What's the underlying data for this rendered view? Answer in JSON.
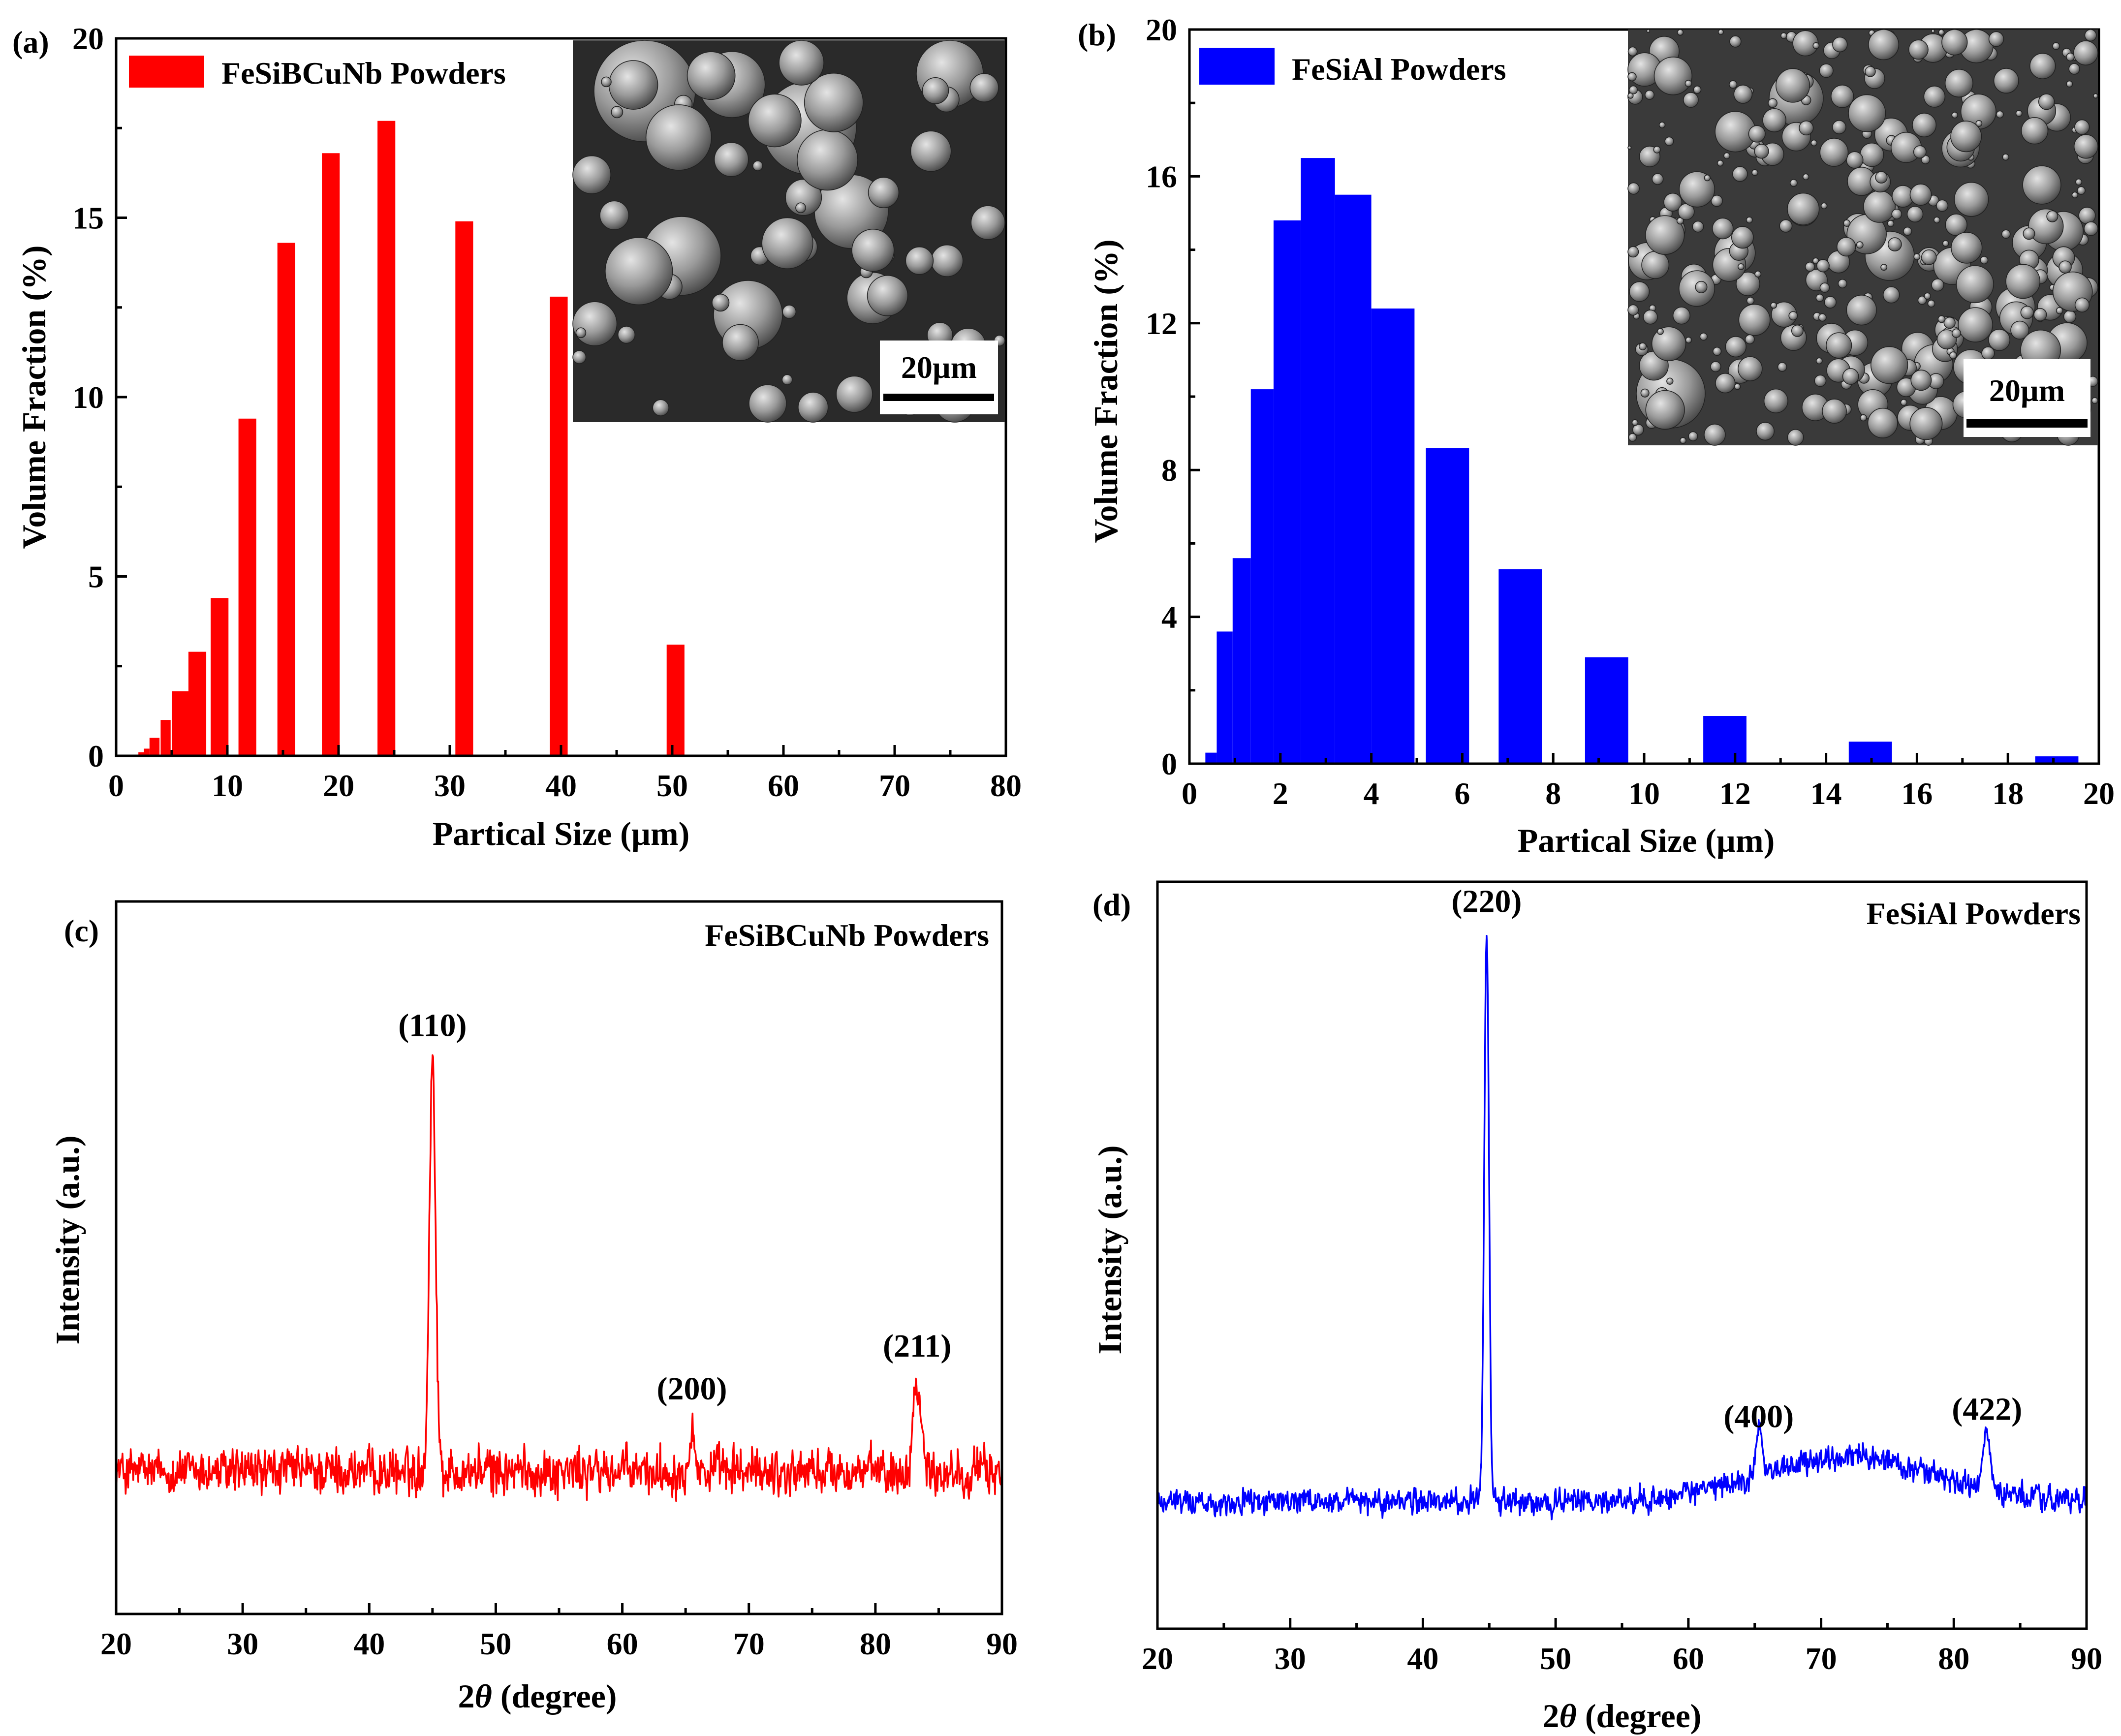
{
  "chart_data": [
    {
      "type": "bar",
      "panel_label": "(a)",
      "xlabel": "Partical Size (µm)",
      "ylabel": "Volume Fraction (%)",
      "xlim": [
        0,
        80
      ],
      "ylim": [
        0,
        20
      ],
      "xticks": [
        "0",
        "10",
        "20",
        "30",
        "40",
        "50",
        "60",
        "70",
        "80"
      ],
      "yticks": [
        "0",
        "5",
        "10",
        "15",
        "20"
      ],
      "legend": "FeSiBCuNb Powders",
      "legend_position": "top-left",
      "series_color": "#ff0000",
      "inset_scale_bar": "20µm",
      "bars": [
        {
          "x": 2.0,
          "width": 0.5,
          "value": 0.1
        },
        {
          "x": 2.5,
          "width": 0.5,
          "value": 0.2
        },
        {
          "x": 3.0,
          "width": 0.9,
          "value": 0.5
        },
        {
          "x": 4.0,
          "width": 0.9,
          "value": 1.0
        },
        {
          "x": 5.0,
          "width": 1.6,
          "value": 1.8
        },
        {
          "x": 6.5,
          "width": 1.6,
          "value": 2.9
        },
        {
          "x": 8.5,
          "width": 1.6,
          "value": 4.4
        },
        {
          "x": 11.0,
          "width": 1.6,
          "value": 9.4
        },
        {
          "x": 14.5,
          "width": 1.6,
          "value": 14.3
        },
        {
          "x": 18.5,
          "width": 1.6,
          "value": 16.8
        },
        {
          "x": 23.5,
          "width": 1.6,
          "value": 17.7
        },
        {
          "x": 30.5,
          "width": 1.6,
          "value": 14.9
        },
        {
          "x": 39.0,
          "width": 1.6,
          "value": 12.8
        },
        {
          "x": 49.5,
          "width": 1.6,
          "value": 3.1
        }
      ]
    },
    {
      "type": "bar",
      "panel_label": "(b)",
      "xlabel": "Partical Size (µm)",
      "ylabel": "Volume Fraction (%)",
      "xlim": [
        0,
        20
      ],
      "ylim": [
        0,
        20
      ],
      "xticks": [
        "0",
        "2",
        "4",
        "6",
        "8",
        "10",
        "12",
        "14",
        "16",
        "18",
        "20"
      ],
      "yticks": [
        "0",
        "4",
        "8",
        "12",
        "16",
        "20"
      ],
      "legend": "FeSiAl Powders",
      "legend_position": "top-left",
      "series_color": "#0000ff",
      "inset_scale_bar": "20µm",
      "bars": [
        {
          "x": 0.35,
          "width": 0.25,
          "value": 0.3
        },
        {
          "x": 0.6,
          "width": 0.35,
          "value": 3.6
        },
        {
          "x": 0.95,
          "width": 0.4,
          "value": 5.6
        },
        {
          "x": 1.35,
          "width": 0.5,
          "value": 10.2
        },
        {
          "x": 1.85,
          "width": 0.6,
          "value": 14.8
        },
        {
          "x": 2.45,
          "width": 0.75,
          "value": 16.5
        },
        {
          "x": 3.2,
          "width": 0.8,
          "value": 15.5
        },
        {
          "x": 4.0,
          "width": 0.95,
          "value": 12.4
        },
        {
          "x": 5.2,
          "width": 0.95,
          "value": 8.6
        },
        {
          "x": 6.8,
          "width": 0.95,
          "value": 5.3
        },
        {
          "x": 8.7,
          "width": 0.95,
          "value": 2.9
        },
        {
          "x": 11.3,
          "width": 0.95,
          "value": 1.3
        },
        {
          "x": 14.5,
          "width": 0.95,
          "value": 0.6
        },
        {
          "x": 18.6,
          "width": 0.95,
          "value": 0.2
        }
      ]
    },
    {
      "type": "line",
      "panel_label": "(c)",
      "xlabel_prefix": "2",
      "xlabel_symbol": "θ",
      "xlabel_suffix": " (degree)",
      "ylabel": "Intensity (a.u.)",
      "xlim": [
        20,
        90
      ],
      "ylim": [
        0,
        1
      ],
      "xticks": [
        "20",
        "30",
        "40",
        "50",
        "60",
        "70",
        "80",
        "90"
      ],
      "legend": "FeSiBCuNb Powders",
      "legend_position": "top-right",
      "series_color": "#ff0000",
      "baseline": 0.2,
      "noise": 0.035,
      "peaks": [
        {
          "label": "(110)",
          "x": 45.0,
          "height": 0.58,
          "width": 0.35
        },
        {
          "label": "(200)",
          "x": 65.5,
          "height": 0.07,
          "width": 0.3
        },
        {
          "label": "(211)",
          "x": 83.3,
          "height": 0.13,
          "width": 0.45
        }
      ]
    },
    {
      "type": "line",
      "panel_label": "(d)",
      "xlabel_prefix": "2",
      "xlabel_symbol": "θ",
      "xlabel_suffix": " (degree)",
      "ylabel": "Intensity (a.u.)",
      "xlim": [
        20,
        90
      ],
      "ylim": [
        0,
        1
      ],
      "xticks": [
        "20",
        "30",
        "40",
        "50",
        "60",
        "70",
        "80",
        "90"
      ],
      "legend": "FeSiAl Powders",
      "legend_position": "top-right",
      "series_color": "#0000ff",
      "baseline": 0.17,
      "noise": 0.018,
      "hump": {
        "center": 72,
        "width": 9,
        "height": 0.06
      },
      "peaks": [
        {
          "label": "(220)",
          "x": 44.8,
          "height": 0.76,
          "width": 0.25
        },
        {
          "label": "(400)",
          "x": 65.3,
          "height": 0.07,
          "width": 0.35
        },
        {
          "label": "(422)",
          "x": 82.5,
          "height": 0.08,
          "width": 0.4
        }
      ]
    }
  ]
}
